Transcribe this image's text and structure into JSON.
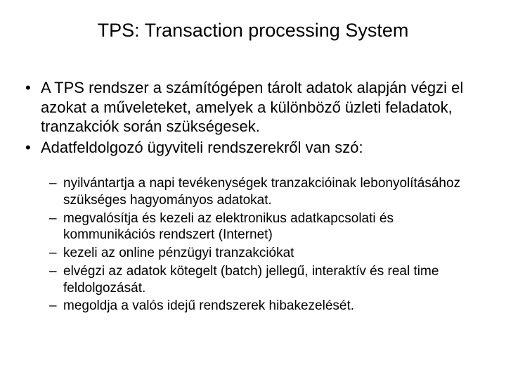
{
  "title": "TPS: Transaction processing System",
  "bullets": {
    "b0": "A TPS rendszer a számítógépen tárolt adatok alapján végzi el azokat a műveleteket, amelyek a különböző üzleti feladatok, tranzakciók során szükségesek.",
    "b1": "Adatfeldolgozó ügyviteli rendszerekről van szó:"
  },
  "sub": {
    "s0": "nyilvántartja a napi tevékenységek tranzakcióinak lebonyolításához szükséges hagyományos adatokat.",
    "s1": "megvalósítja és kezeli az elektronikus adatkapcsolati és kommunikációs rendszert (Internet)",
    "s2": "kezeli az online pénzügyi tranzakciókat",
    "s3": "elvégzi az adatok kötegelt (batch) jellegű, interaktív és real time feldolgozását.",
    "s4": "megoldja a valós idejű rendszerek hibakezelését."
  },
  "colors": {
    "background": "#ffffff",
    "text": "#000000"
  },
  "typography": {
    "title_fontsize": 27,
    "body_fontsize": 22,
    "sub_fontsize": 19,
    "font_family": "Arial"
  }
}
